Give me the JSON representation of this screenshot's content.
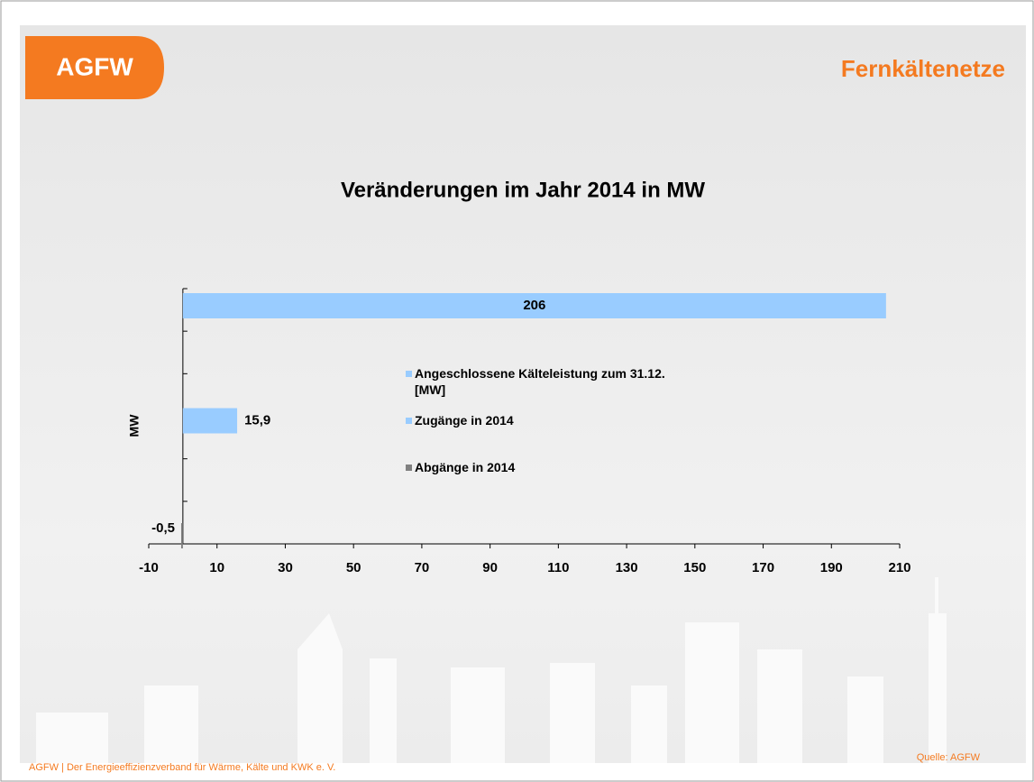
{
  "header": {
    "logo": "AGFW",
    "title": "Fernkältenetze"
  },
  "footer": {
    "text": "AGFW | Der Energieeffizienzverband für Wärme, Kälte und KWK e. V.",
    "source": "Quelle: AGFW"
  },
  "chart_data": {
    "type": "bar",
    "orientation": "horizontal",
    "title": "Veränderungen im Jahr 2014 in MW",
    "y_label": "MW",
    "categories": [
      null
    ],
    "series": [
      {
        "name": "Angeschlossene Kälteleistung zum 31.12. [MW]",
        "color": "#99ccff",
        "values": [
          206
        ],
        "value_labels": [
          "206"
        ]
      },
      {
        "name": "Zugänge in 2014",
        "color": "#99ccff",
        "values": [
          15.9
        ],
        "value_labels": [
          "15,9"
        ]
      },
      {
        "name": "Abgänge in 2014",
        "color": "#808080",
        "values": [
          -0.5
        ],
        "value_labels": [
          "-0,5"
        ]
      }
    ],
    "xlim": [
      -10,
      210
    ],
    "xticks": [
      -10,
      10,
      30,
      50,
      70,
      90,
      110,
      130,
      150,
      170,
      190,
      210
    ],
    "grid": false
  }
}
